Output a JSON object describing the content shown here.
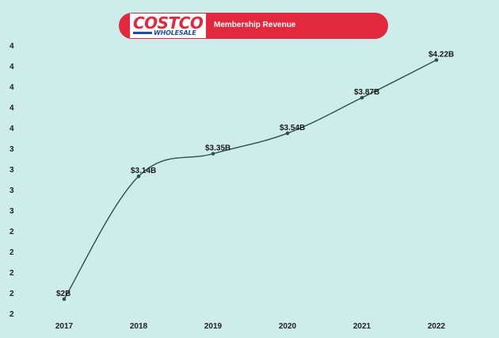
{
  "header": {
    "logo_text": "COSTCO",
    "logo_subtext": "WHOLESALE",
    "title": "Membership Revenue"
  },
  "colors": {
    "background": "#cdecea",
    "banner": "#e2283c",
    "line": "#2f4f4f"
  },
  "chart_data": {
    "type": "line",
    "title": "Membership Revenue",
    "xlabel": "",
    "ylabel": "",
    "categories": [
      "2017",
      "2018",
      "2019",
      "2020",
      "2021",
      "2022"
    ],
    "values": [
      2.0,
      3.14,
      3.35,
      3.54,
      3.87,
      4.22
    ],
    "data_labels": [
      "$2B",
      "$3.14B",
      "$3.35B",
      "$3.54B",
      "$3.87B",
      "$4.22B"
    ],
    "y_tick_labels": [
      "2",
      "2",
      "2",
      "2",
      "2",
      "3",
      "3",
      "3",
      "3",
      "4",
      "4",
      "4",
      "4",
      "4"
    ],
    "grid": false,
    "legend": "none"
  }
}
